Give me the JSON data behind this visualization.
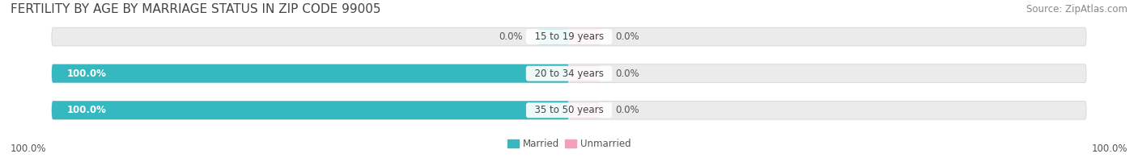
{
  "title": "FERTILITY BY AGE BY MARRIAGE STATUS IN ZIP CODE 99005",
  "source": "Source: ZipAtlas.com",
  "categories": [
    "15 to 19 years",
    "20 to 34 years",
    "35 to 50 years"
  ],
  "married_values": [
    0.0,
    100.0,
    100.0
  ],
  "unmarried_values": [
    0.0,
    0.0,
    0.0
  ],
  "married_color": "#35b8c0",
  "unmarried_color": "#f4a0b8",
  "bar_bg_color": "#ebebeb",
  "bar_border_color": "#d0d0d0",
  "title_fontsize": 11,
  "source_fontsize": 8.5,
  "label_fontsize": 8.5,
  "category_fontsize": 8.5,
  "tick_fontsize": 8.5,
  "background_color": "#ffffff",
  "left_axis_label": "100.0%",
  "right_axis_label": "100.0%",
  "legend_married": "Married",
  "legend_unmarried": "Unmarried"
}
